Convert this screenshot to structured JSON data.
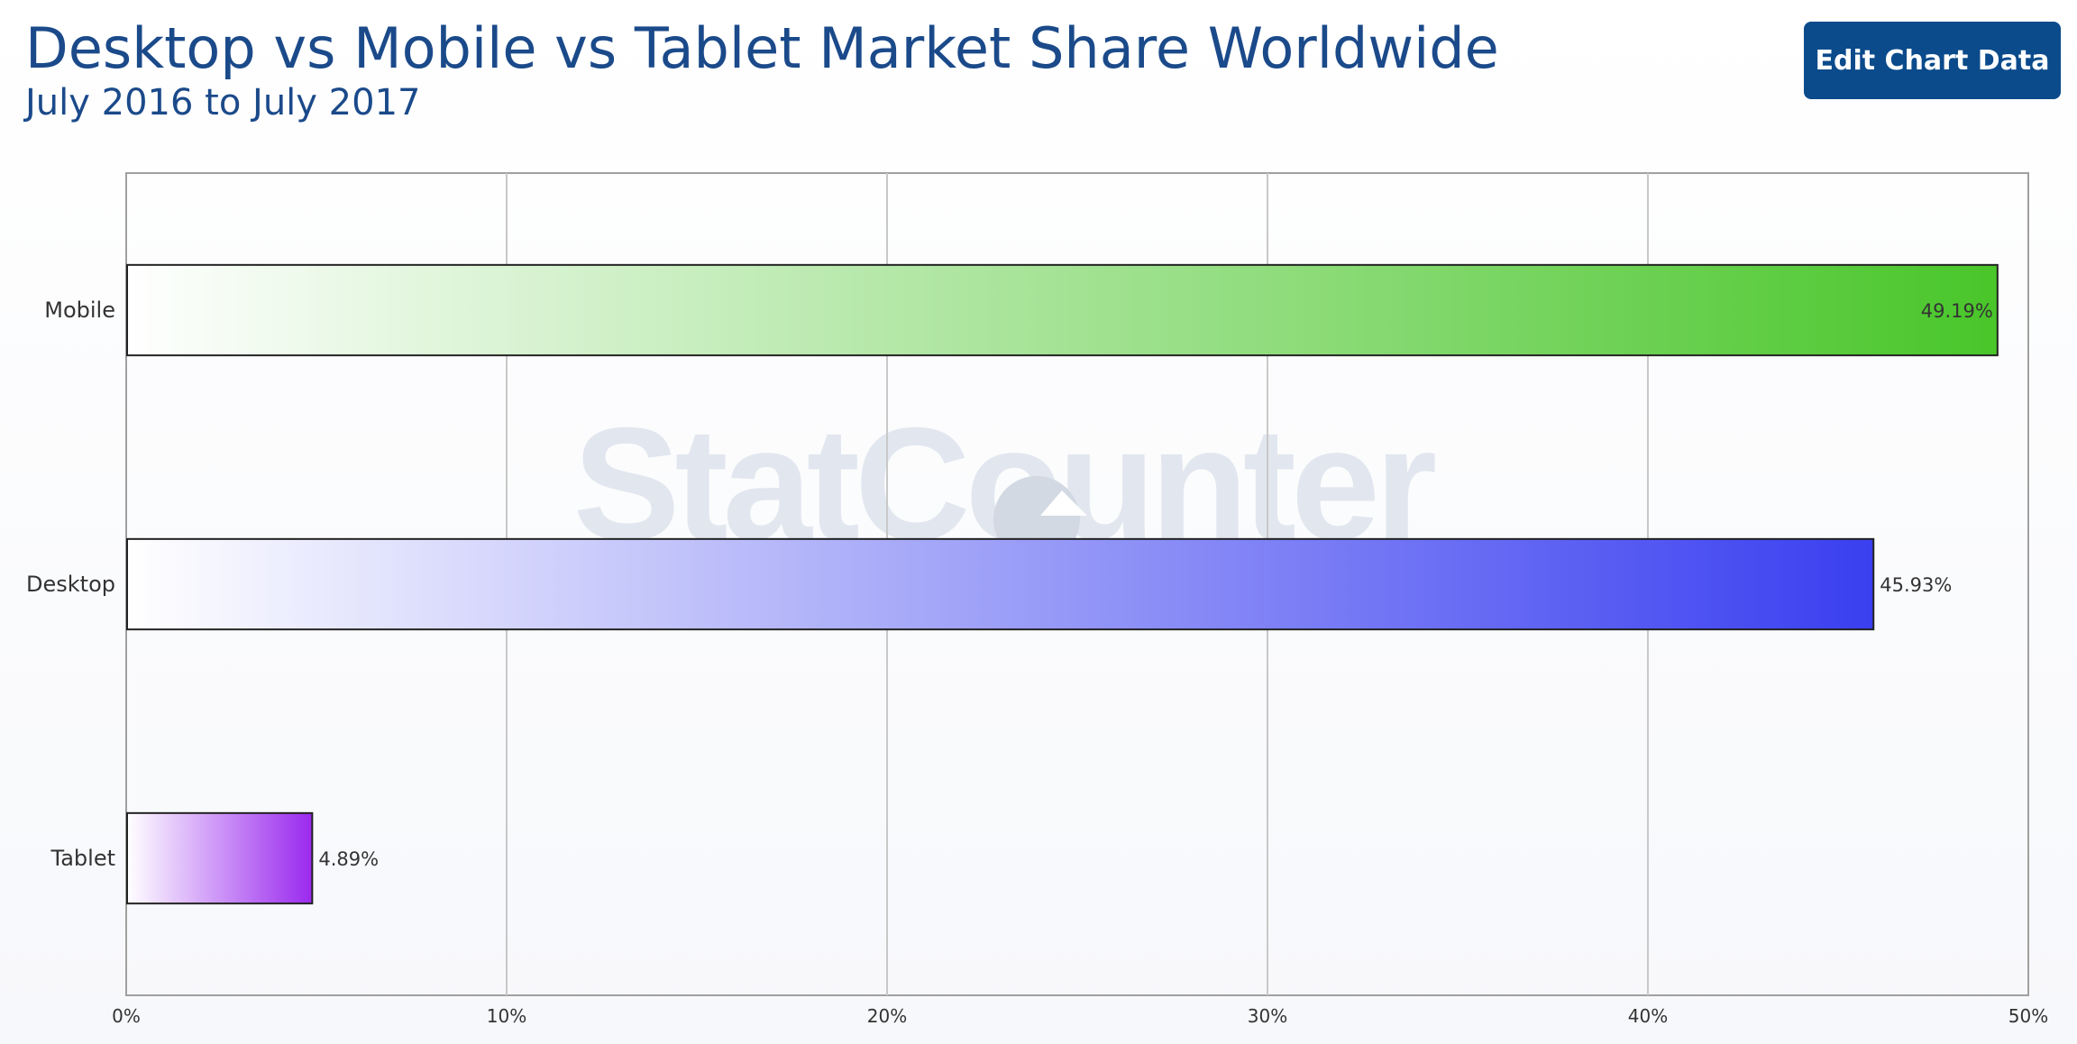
{
  "header": {
    "title": "Desktop vs Mobile vs Tablet Market Share Worldwide",
    "subtitle": "July 2016 to July 2017",
    "edit_button_label": "Edit Chart Data"
  },
  "watermark": "StatCounter",
  "colors": {
    "title": "#1b4a8a",
    "button": "#0b4b8c",
    "grid": "#c8c8c8",
    "axis": "#a0a0a0"
  },
  "chart_data": {
    "type": "bar",
    "orientation": "horizontal",
    "categories": [
      "Mobile",
      "Desktop",
      "Tablet"
    ],
    "values": [
      49.19,
      45.93,
      4.89
    ],
    "data_labels": [
      "49.19%",
      "45.93%",
      "4.89%"
    ],
    "bar_colors": [
      "#49c62a",
      "#3a3ff0",
      "#9a29ee"
    ],
    "xlim": [
      0,
      50
    ],
    "x_ticks": [
      0,
      10,
      20,
      30,
      40,
      50
    ],
    "x_tick_labels": [
      "0%",
      "10%",
      "20%",
      "30%",
      "40%",
      "50%"
    ],
    "grid": true,
    "legend": "none"
  }
}
